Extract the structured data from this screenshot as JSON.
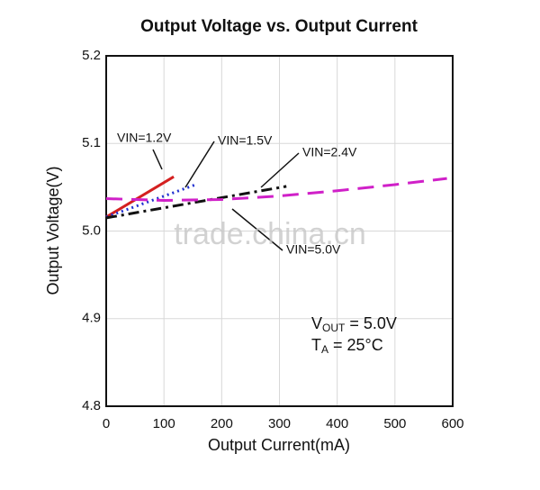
{
  "chart_data": {
    "type": "line",
    "title": "Output Voltage vs. Output Current",
    "x_label": "Output Current(mA)",
    "y_label": "Output Voltage(V)",
    "xlim": [
      0,
      600
    ],
    "xticks": [
      0,
      100,
      200,
      300,
      400,
      500,
      600
    ],
    "ylim": [
      4.8,
      5.2
    ],
    "yticks": [
      4.8,
      4.9,
      {
        "value": 5,
        "label": "5.0"
      },
      5.1,
      5.2
    ],
    "grid": true,
    "series": [
      {
        "name": "VIN=1.2V",
        "color": "#d42020",
        "dash": "solid",
        "x": [
          0,
          117
        ],
        "values": [
          5.016,
          5.062
        ]
      },
      {
        "name": "VIN=1.5V",
        "color": "#2030d0",
        "dash": "dotted",
        "x": [
          0,
          155
        ],
        "values": [
          5.016,
          5.053
        ]
      },
      {
        "name": "VIN=2.4V",
        "color": "#111111",
        "dash": "dashdot",
        "x": [
          0,
          312
        ],
        "values": [
          5.015,
          5.051
        ]
      },
      {
        "name": "VIN=5.0V",
        "color": "#d020c8",
        "dash": "dashed",
        "x": [
          0,
          100,
          200,
          300,
          400,
          500,
          590
        ],
        "values": [
          5.037,
          5.035,
          5.036,
          5.04,
          5.046,
          5.053,
          5.06
        ]
      }
    ],
    "annotations": [
      {
        "main": "V",
        "sub": "OUT",
        "rest": " = 5.0V"
      },
      {
        "main": "T",
        "sub": "A",
        "rest": " = 25°C"
      }
    ],
    "watermark": "trade.china.cn"
  }
}
